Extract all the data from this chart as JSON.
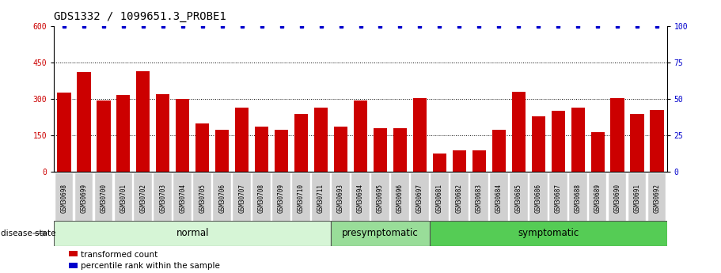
{
  "title": "GDS1332 / 1099651.3_PROBE1",
  "samples": [
    "GSM30698",
    "GSM30699",
    "GSM30700",
    "GSM30701",
    "GSM30702",
    "GSM30703",
    "GSM30704",
    "GSM30705",
    "GSM30706",
    "GSM30707",
    "GSM30708",
    "GSM30709",
    "GSM30710",
    "GSM30711",
    "GSM30693",
    "GSM30694",
    "GSM30695",
    "GSM30696",
    "GSM30697",
    "GSM30681",
    "GSM30682",
    "GSM30683",
    "GSM30684",
    "GSM30685",
    "GSM30686",
    "GSM30687",
    "GSM30688",
    "GSM30689",
    "GSM30690",
    "GSM30691",
    "GSM30692"
  ],
  "values": [
    325,
    410,
    295,
    315,
    415,
    320,
    300,
    200,
    175,
    265,
    185,
    175,
    240,
    265,
    185,
    295,
    180,
    180,
    305,
    75,
    90,
    90,
    175,
    330,
    230,
    250,
    265,
    165,
    305,
    240,
    255
  ],
  "bar_color": "#cc0000",
  "percentile_color": "#0000cc",
  "ylim_left": [
    0,
    600
  ],
  "ylim_right": [
    0,
    100
  ],
  "yticks_left": [
    0,
    150,
    300,
    450,
    600
  ],
  "yticks_right": [
    0,
    25,
    50,
    75,
    100
  ],
  "groups": [
    {
      "label": "normal",
      "start": 0,
      "end": 14,
      "color": "#d6f5d6"
    },
    {
      "label": "presymptomatic",
      "start": 14,
      "end": 19,
      "color": "#99dd99"
    },
    {
      "label": "symptomatic",
      "start": 19,
      "end": 31,
      "color": "#55cc55"
    }
  ],
  "disease_state_label": "disease state",
  "legend_bar_label": "transformed count",
  "legend_pct_label": "percentile rank within the sample",
  "background_color": "#ffffff",
  "title_fontsize": 10,
  "tick_fontsize": 7,
  "group_label_fontsize": 8.5,
  "label_bg_color": "#d0d0d0"
}
